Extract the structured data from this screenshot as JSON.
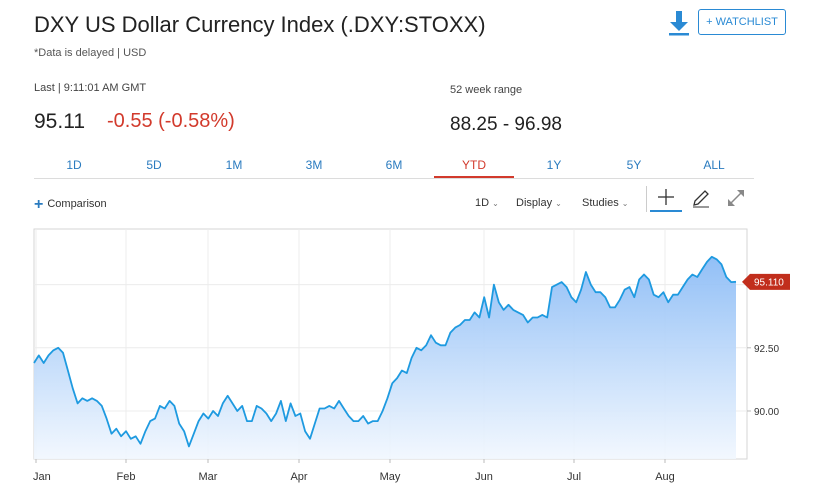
{
  "header": {
    "title": "DXY US Dollar Currency Index (.DXY:STOXX)",
    "delay_note": "*Data is delayed | USD",
    "download_icon": "download-icon",
    "watchlist_label": "+ WATCHLIST",
    "colors": {
      "accent": "#2a8ad4",
      "negative": "#d23a2c"
    }
  },
  "quote": {
    "last_label": "Last | 9:11:01 AM GMT",
    "price": "95.11",
    "change": "-0.55 (-0.58%)",
    "range_label": "52 week range",
    "range_value": "88.25 - 96.98"
  },
  "tabs": [
    {
      "label": "1D",
      "active": false
    },
    {
      "label": "5D",
      "active": false
    },
    {
      "label": "1M",
      "active": false
    },
    {
      "label": "3M",
      "active": false
    },
    {
      "label": "6M",
      "active": false
    },
    {
      "label": "YTD",
      "active": true
    },
    {
      "label": "1Y",
      "active": false
    },
    {
      "label": "5Y",
      "active": false
    },
    {
      "label": "ALL",
      "active": false
    }
  ],
  "toolbar": {
    "comparison_label": "Comparison",
    "interval_label": "1D",
    "display_label": "Display",
    "studies_label": "Studies",
    "icons": [
      "crosshair-icon",
      "pencil-icon",
      "expand-icon"
    ]
  },
  "chart_data": {
    "type": "area",
    "x_tick_labels": [
      "Jan",
      "Feb",
      "Mar",
      "Apr",
      "May",
      "Jun",
      "Jul",
      "Aug"
    ],
    "y_tick_labels": [
      "90.00",
      "92.50"
    ],
    "y_ticks": [
      90.0,
      92.5
    ],
    "ylim": [
      88.1,
      97.2
    ],
    "last_value_label": "95.110",
    "last_value": 95.11,
    "grid": true,
    "line_color": "#1e9ae0",
    "fill_color": "#b9d7fb",
    "series": [
      {
        "values": [
          91.9,
          92.2,
          91.9,
          92.2,
          92.4,
          92.5,
          92.3,
          91.6,
          90.9,
          90.3,
          90.5,
          90.4,
          90.5,
          90.4,
          90.2,
          89.7,
          89.1,
          89.3,
          89.0,
          89.2,
          88.9,
          89.0,
          88.7,
          89.2,
          89.6,
          89.7,
          90.2,
          90.1,
          90.4,
          90.2,
          89.5,
          89.2,
          88.6,
          89.1,
          89.6,
          89.9,
          89.7,
          90.0,
          89.8,
          90.3,
          90.6,
          90.3,
          90.0,
          90.2,
          89.6,
          89.6,
          90.2,
          90.1,
          89.9,
          89.6,
          89.9,
          90.4,
          89.6,
          90.3,
          89.8,
          89.9,
          89.2,
          88.9,
          89.5,
          90.1,
          90.1,
          90.2,
          90.1,
          90.4,
          90.1,
          89.8,
          89.6,
          89.6,
          89.8,
          89.5,
          89.6,
          89.6,
          90.0,
          90.5,
          91.1,
          91.3,
          91.6,
          91.5,
          92.1,
          92.5,
          92.4,
          92.6,
          93.0,
          92.7,
          92.6,
          92.6,
          93.1,
          93.3,
          93.4,
          93.6,
          93.6,
          93.9,
          93.7,
          94.5,
          93.7,
          95.0,
          94.3,
          94.0,
          94.2,
          94.0,
          93.9,
          93.8,
          93.5,
          93.7,
          93.7,
          93.8,
          93.7,
          94.9,
          95.0,
          95.1,
          94.9,
          94.5,
          94.3,
          94.8,
          95.5,
          95.0,
          94.7,
          94.7,
          94.5,
          94.1,
          94.1,
          94.4,
          94.8,
          94.9,
          94.5,
          95.2,
          95.4,
          95.2,
          94.6,
          94.5,
          94.7,
          94.3,
          94.6,
          94.6,
          94.9,
          95.2,
          95.4,
          95.3,
          95.6,
          95.9,
          96.1,
          96.0,
          95.8,
          95.3,
          95.1,
          95.11
        ]
      }
    ]
  }
}
